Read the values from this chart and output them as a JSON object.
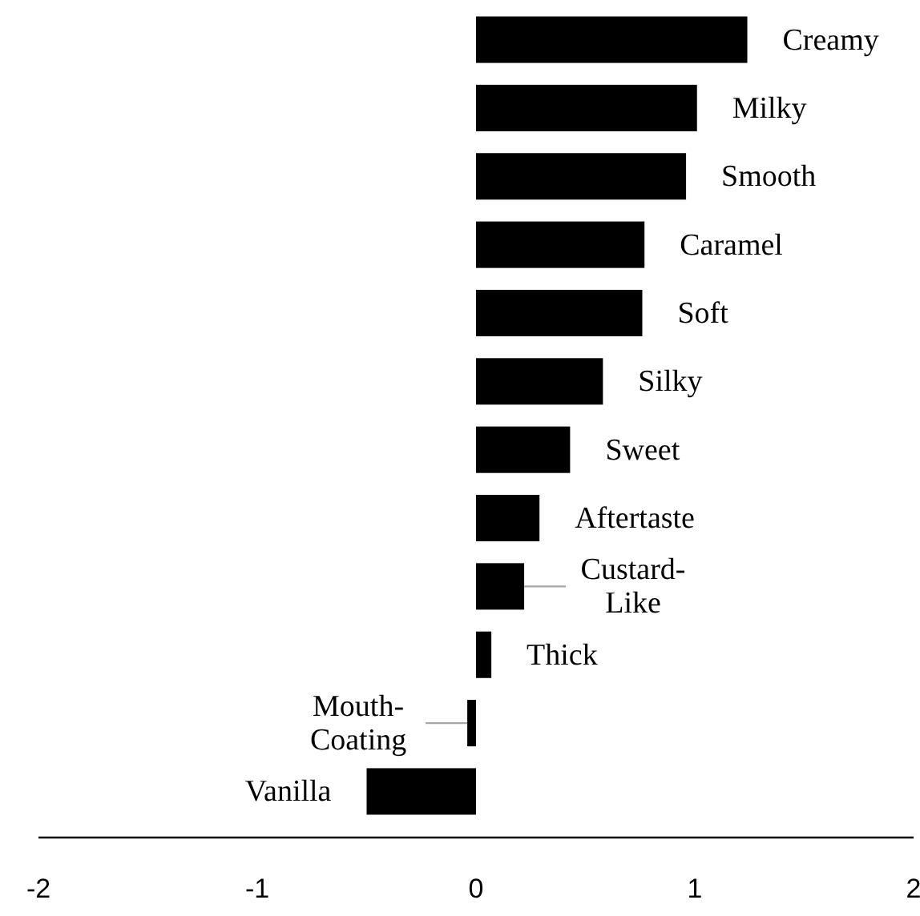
{
  "chart_data": {
    "type": "bar",
    "orientation": "horizontal",
    "categories": [
      "Creamy",
      "Milky",
      "Smooth",
      "Caramel",
      "Soft",
      "Silky",
      "Sweet",
      "Aftertaste",
      "Custard-Like",
      "Thick",
      "Mouth-Coating",
      "Vanilla"
    ],
    "values": [
      1.24,
      1.01,
      0.96,
      0.77,
      0.76,
      0.58,
      0.43,
      0.29,
      0.22,
      0.07,
      -0.04,
      -0.5
    ],
    "color": "#000000",
    "xlim": [
      -2,
      2
    ],
    "xticks": [
      -2,
      -1,
      0,
      1,
      2
    ],
    "grid": false
  }
}
